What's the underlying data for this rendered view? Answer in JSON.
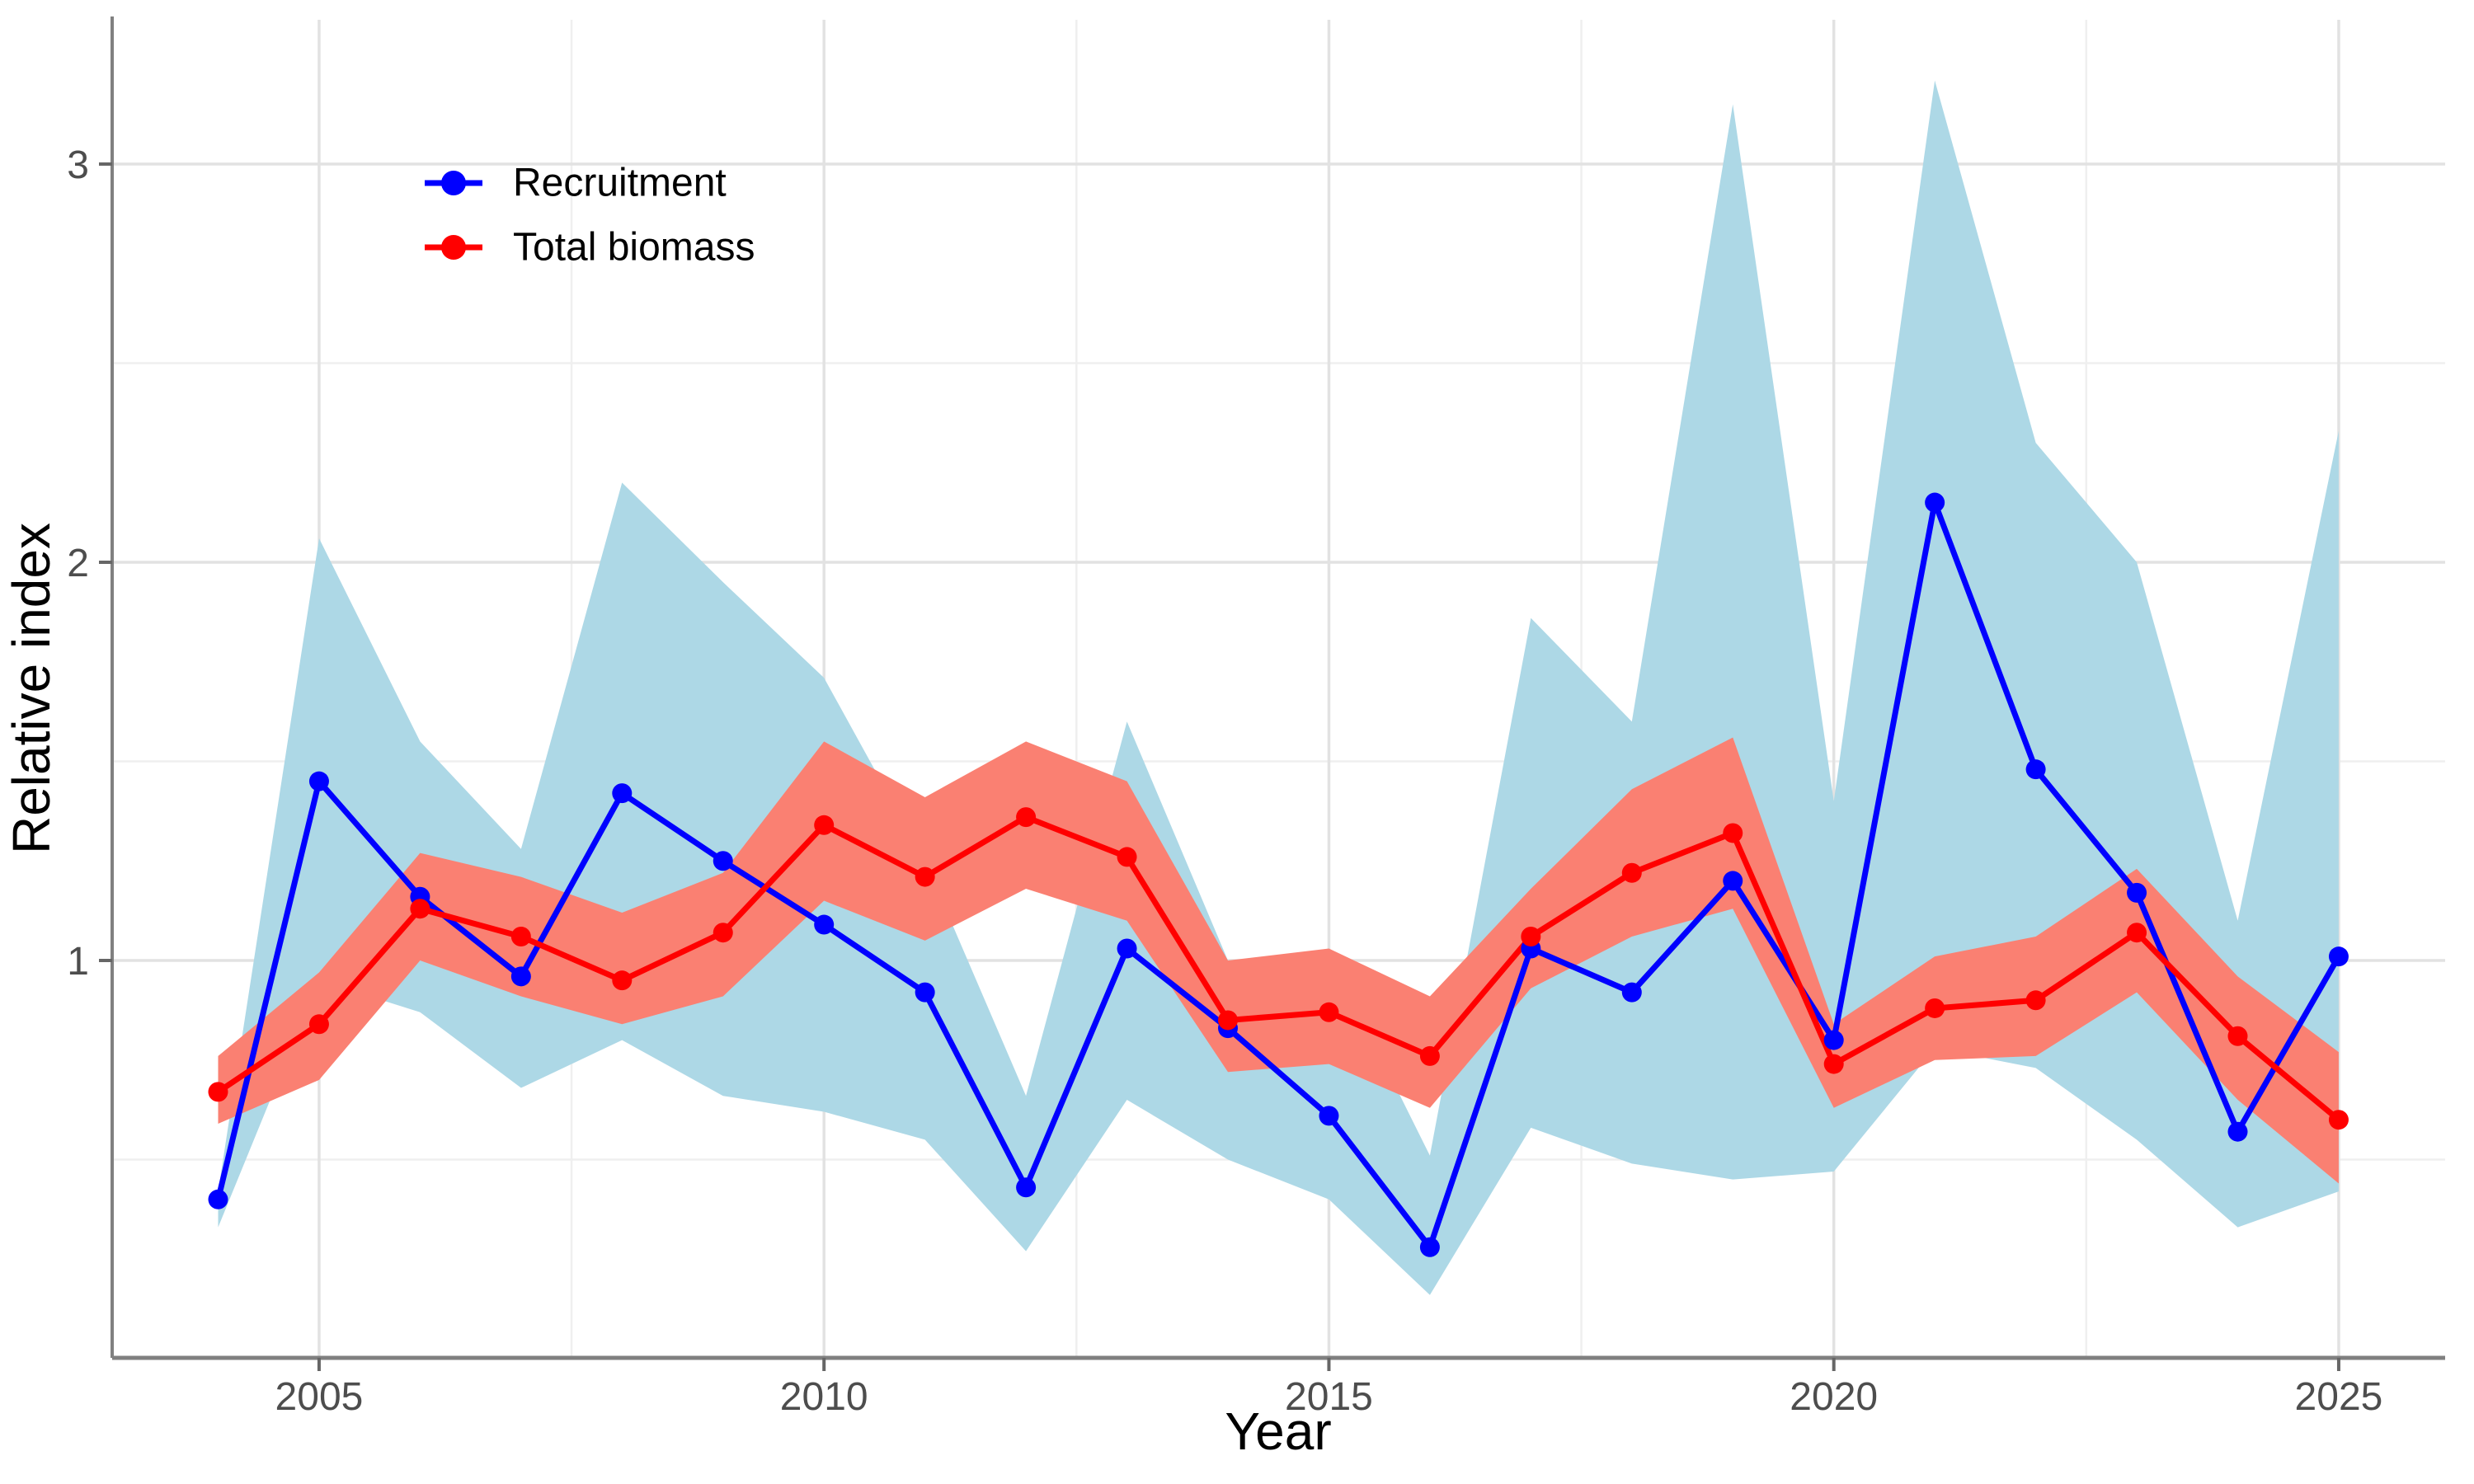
{
  "chart_data": {
    "type": "line",
    "title": "",
    "xlabel": "Year",
    "ylabel": "Relative index",
    "x": [
      2004,
      2005,
      2006,
      2007,
      2008,
      2009,
      2010,
      2011,
      2012,
      2013,
      2014,
      2015,
      2016,
      2017,
      2018,
      2019,
      2020,
      2021,
      2022,
      2023,
      2024,
      2025
    ],
    "series": [
      {
        "name": "Recruitment",
        "color": "#0000ff",
        "band_color": "#add8e6",
        "values": [
          0.4,
          1.45,
          1.16,
          0.96,
          1.42,
          1.25,
          1.09,
          0.92,
          0.43,
          1.03,
          0.83,
          0.61,
          0.28,
          1.03,
          0.92,
          1.2,
          0.8,
          2.15,
          1.48,
          1.17,
          0.57,
          1.01
        ],
        "band_lower": [
          0.33,
          0.95,
          0.87,
          0.68,
          0.8,
          0.66,
          0.62,
          0.55,
          0.27,
          0.65,
          0.5,
          0.4,
          0.16,
          0.58,
          0.49,
          0.45,
          0.47,
          0.78,
          0.73,
          0.55,
          0.33,
          0.42
        ],
        "band_upper": [
          0.42,
          2.06,
          1.55,
          1.28,
          2.2,
          1.95,
          1.71,
          1.25,
          0.66,
          1.6,
          1.0,
          1.02,
          0.51,
          1.86,
          1.6,
          3.15,
          1.4,
          3.21,
          2.3,
          2.0,
          1.1,
          2.33
        ]
      },
      {
        "name": "Total biomass",
        "color": "#ff0000",
        "band_color": "#fa8072",
        "values": [
          0.67,
          0.84,
          1.13,
          1.06,
          0.95,
          1.07,
          1.34,
          1.21,
          1.36,
          1.26,
          0.85,
          0.87,
          0.76,
          1.06,
          1.22,
          1.32,
          0.74,
          0.88,
          0.9,
          1.07,
          0.81,
          0.6
        ],
        "band_lower": [
          0.59,
          0.7,
          1.0,
          0.91,
          0.84,
          0.91,
          1.15,
          1.05,
          1.18,
          1.1,
          0.72,
          0.74,
          0.63,
          0.93,
          1.06,
          1.13,
          0.63,
          0.75,
          0.76,
          0.92,
          0.65,
          0.44
        ],
        "band_upper": [
          0.76,
          0.97,
          1.27,
          1.21,
          1.12,
          1.22,
          1.55,
          1.41,
          1.55,
          1.45,
          1.0,
          1.03,
          0.91,
          1.18,
          1.43,
          1.56,
          0.84,
          1.01,
          1.06,
          1.23,
          0.96,
          0.77
        ]
      }
    ],
    "x_domain": [
      2004,
      2025
    ],
    "y_domain": [
      0.0,
      3.36
    ],
    "x_ticks": {
      "major": [
        2005,
        2010,
        2015,
        2020,
        2025
      ],
      "minor": [
        2007.5,
        2012.5,
        2017.5,
        2022.5
      ],
      "labels": [
        "2005",
        "2010",
        "2015",
        "2020",
        "2025"
      ]
    },
    "y_ticks": {
      "major": [
        1,
        2,
        3
      ],
      "minor": [
        0.5,
        1.5,
        2.5
      ],
      "labels": [
        "1",
        "2",
        "3"
      ]
    },
    "grid": true,
    "legend_position": "inset-top-left"
  },
  "legend": {
    "items": [
      {
        "label": "Recruitment"
      },
      {
        "label": "Total biomass"
      }
    ]
  },
  "style": {
    "grid_major_color": "#e2e2e2",
    "grid_minor_color": "#efefef",
    "axis_line_color": "#808080",
    "tick_color": "#666666",
    "tick_label_color": "#4d4d4d",
    "background": "#ffffff"
  }
}
